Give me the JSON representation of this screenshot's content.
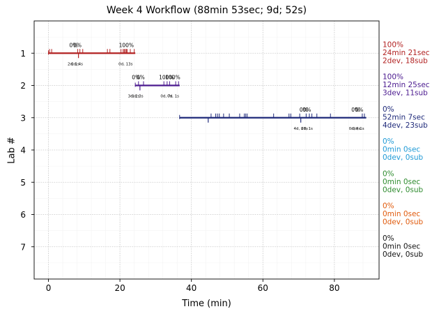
{
  "chart_data": {
    "type": "timeline",
    "title": "Week 4 Workflow (88min 53sec; 9d; 52s)",
    "xlabel": "Time (min)",
    "ylabel": "Lab #",
    "xlim": [
      -4,
      92.5
    ],
    "ylim": [
      8,
      0
    ],
    "x_ticks": [
      0,
      20,
      40,
      60,
      80
    ],
    "x_tick_labels": [
      "0",
      "20",
      "40",
      "60",
      "80"
    ],
    "y_ticks": [
      1,
      2,
      3,
      4,
      5,
      6,
      7
    ],
    "y_tick_labels": [
      "1",
      "2",
      "3",
      "4",
      "5",
      "6",
      "7"
    ],
    "grid": true,
    "labs": [
      {
        "lab": 1,
        "color": "#b22222",
        "start": 0,
        "end": 24.3,
        "stats": [
          "100%",
          "24min 21sec",
          "2dev, 18sub"
        ],
        "up_ticks": [
          0.3,
          0.9,
          8.2,
          8.8,
          9.6,
          16.5,
          17.2,
          20.3,
          20.9,
          21.2,
          21.5,
          21.8,
          22.0,
          22.9,
          24.0
        ],
        "down_ticks": [
          8.4
        ],
        "pct_labels": [
          {
            "x": 7.0,
            "text": "0%"
          },
          {
            "x": 8.1,
            "text": "0%"
          },
          {
            "x": 21.8,
            "text": "100%"
          }
        ],
        "time_labels": [
          {
            "x": 7.0,
            "text": "2d, 1s"
          },
          {
            "x": 8.0,
            "text": "0d, 4s"
          },
          {
            "x": 21.6,
            "text": "0d, 13s"
          }
        ]
      },
      {
        "lab": 2,
        "color": "#4b1a8f",
        "start": 24.3,
        "end": 36.7,
        "stats": [
          "100%",
          "12min 25sec",
          "3dev, 11sub"
        ],
        "up_ticks": [
          25.2,
          26.6,
          32.3,
          33.2,
          33.9,
          35.6,
          36.4
        ],
        "down_ticks": [
          25.6
        ],
        "pct_labels": [
          {
            "x": 24.5,
            "text": "0%"
          },
          {
            "x": 25.8,
            "text": "0%"
          },
          {
            "x": 33.0,
            "text": "100%"
          },
          {
            "x": 34.8,
            "text": "100%"
          }
        ],
        "time_labels": [
          {
            "x": 23.9,
            "text": "3d, 2s"
          },
          {
            "x": 24.9,
            "text": "0d, 3s"
          },
          {
            "x": 33.0,
            "text": "0d, 7s"
          },
          {
            "x": 34.9,
            "text": "0d, 1s"
          }
        ]
      },
      {
        "lab": 3,
        "color": "#1f2a7a",
        "start": 36.7,
        "end": 88.9,
        "stats": [
          "0%",
          "52min 7sec",
          "4dev, 23sub"
        ],
        "up_ticks": [
          45.5,
          46.8,
          47.3,
          47.8,
          49.0,
          50.6,
          53.5,
          54.8,
          55.2,
          55.6,
          63.0,
          67.3,
          67.8,
          70.3,
          72.1,
          73.0,
          73.7,
          75.1,
          78.9,
          87.8,
          88.4
        ],
        "down_ticks": [
          44.7,
          70.6
        ],
        "pct_labels": [
          {
            "x": 71.4,
            "text": "0%"
          },
          {
            "x": 72.3,
            "text": "0%"
          },
          {
            "x": 85.9,
            "text": "0%"
          },
          {
            "x": 86.9,
            "text": "0%"
          }
        ],
        "time_labels": [
          {
            "x": 70.6,
            "text": "4d, 27s"
          },
          {
            "x": 72.3,
            "text": "0d, 1s"
          },
          {
            "x": 85.7,
            "text": "0d, 4s"
          },
          {
            "x": 86.7,
            "text": "0d, 1s"
          }
        ]
      },
      {
        "lab": 4,
        "color": "#1f9ad6",
        "stats": [
          "0%",
          "0min 0sec",
          "0dev, 0sub"
        ]
      },
      {
        "lab": 5,
        "color": "#2e8b2e",
        "stats": [
          "0%",
          "0min 0sec",
          "0dev, 0sub"
        ]
      },
      {
        "lab": 6,
        "color": "#e05a0c",
        "stats": [
          "0%",
          "0min 0sec",
          "0dev, 0sub"
        ]
      },
      {
        "lab": 7,
        "color": "#111111",
        "stats": [
          "0%",
          "0min 0sec",
          "0dev, 0sub"
        ]
      }
    ]
  }
}
